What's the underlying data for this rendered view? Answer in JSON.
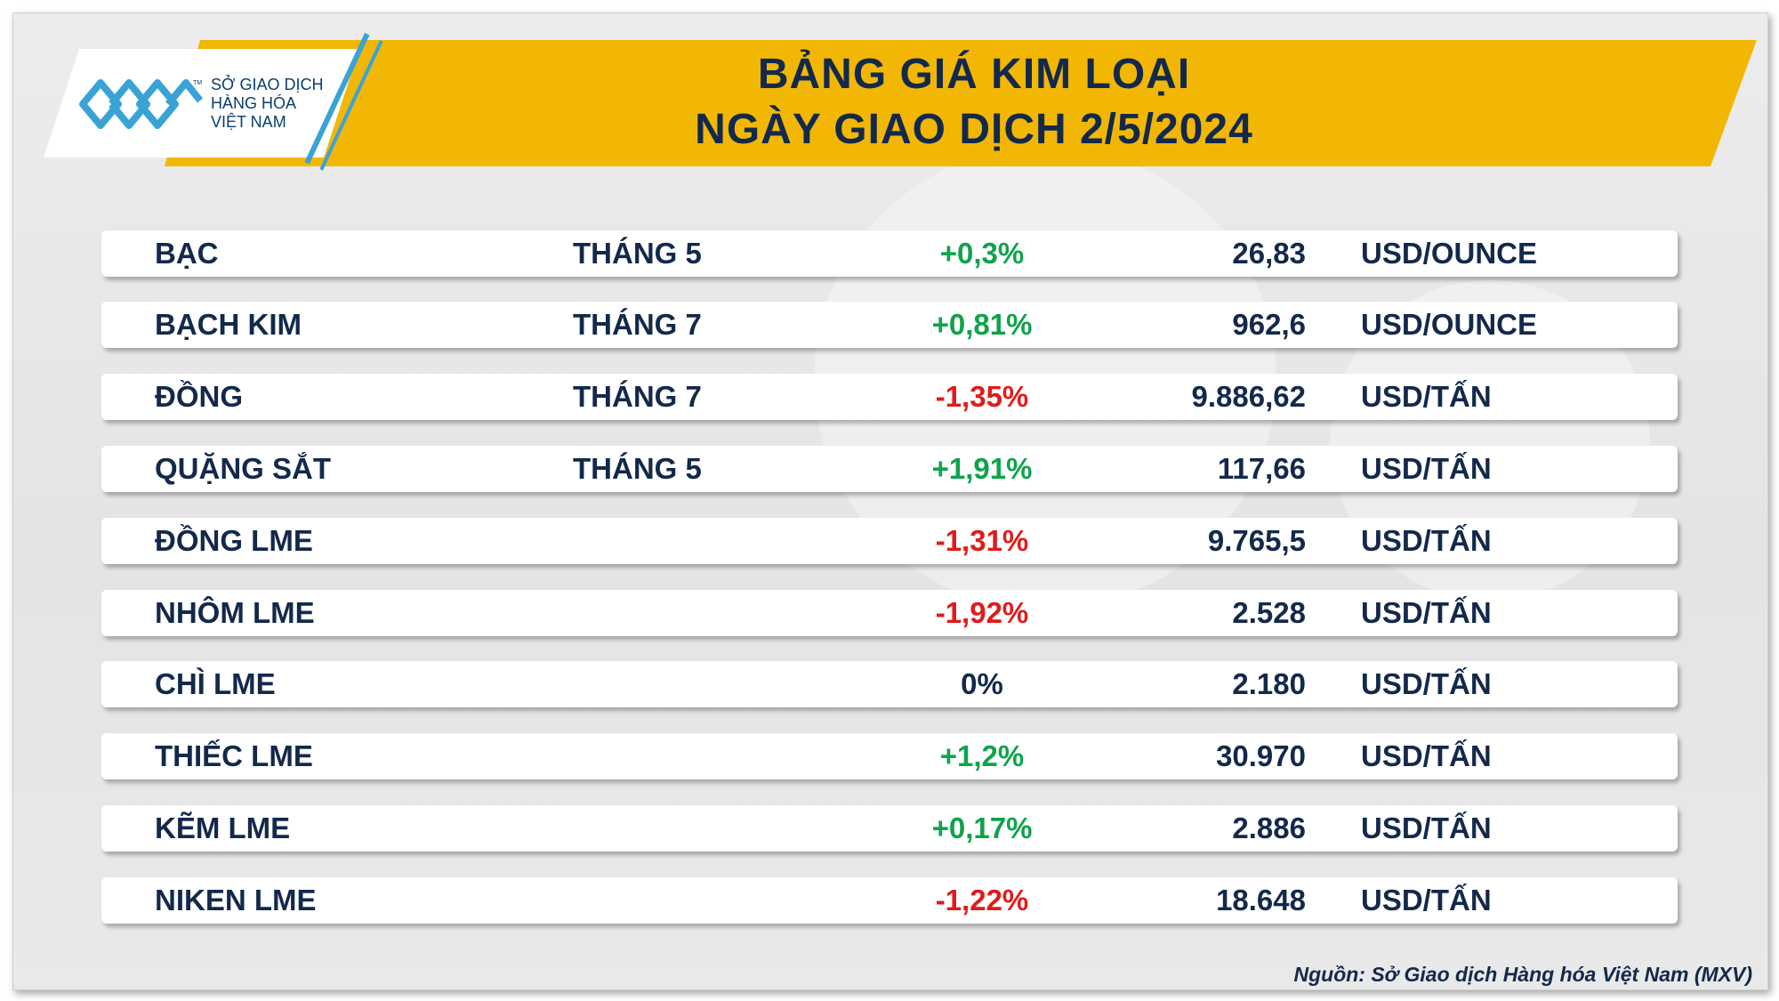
{
  "logo": {
    "line1": "SỞ GIAO DỊCH",
    "line2": "HÀNG HÓA",
    "line3": "VIỆT NAM",
    "tm": "TM"
  },
  "header": {
    "title_line1": "BẢNG GIÁ KIM LOẠI",
    "title_line2": "NGÀY GIAO DỊCH 2/5/2024"
  },
  "colors": {
    "banner": "#f2b705",
    "title": "#13294b",
    "positive": "#0fa34b",
    "negative": "#e01b1b",
    "logo_blue": "#3aa3d6"
  },
  "rows": [
    {
      "name": "BẠC",
      "month": "THÁNG 5",
      "change": "+0,3%",
      "trend": "up",
      "price": "26,83",
      "unit": "USD/OUNCE"
    },
    {
      "name": "BẠCH KIM",
      "month": "THÁNG 7",
      "change": "+0,81%",
      "trend": "up",
      "price": "962,6",
      "unit": "USD/OUNCE"
    },
    {
      "name": "ĐỒNG",
      "month": "THÁNG 7",
      "change": "-1,35%",
      "trend": "down",
      "price": "9.886,62",
      "unit": "USD/TẤN"
    },
    {
      "name": "QUẶNG SẮT",
      "month": "THÁNG 5",
      "change": "+1,91%",
      "trend": "up",
      "price": "117,66",
      "unit": "USD/TẤN"
    },
    {
      "name": "ĐỒNG LME",
      "month": "",
      "change": "-1,31%",
      "trend": "down",
      "price": "9.765,5",
      "unit": "USD/TẤN"
    },
    {
      "name": "NHÔM LME",
      "month": "",
      "change": "-1,92%",
      "trend": "down",
      "price": "2.528",
      "unit": "USD/TẤN"
    },
    {
      "name": "CHÌ LME",
      "month": "",
      "change": "0%",
      "trend": "flat",
      "price": "2.180",
      "unit": "USD/TẤN"
    },
    {
      "name": "THIẾC LME",
      "month": "",
      "change": "+1,2%",
      "trend": "up",
      "price": "30.970",
      "unit": "USD/TẤN"
    },
    {
      "name": "KẼM LME",
      "month": "",
      "change": "+0,17%",
      "trend": "up",
      "price": "2.886",
      "unit": "USD/TẤN"
    },
    {
      "name": "NIKEN LME",
      "month": "",
      "change": "-1,22%",
      "trend": "down",
      "price": "18.648",
      "unit": "USD/TẤN"
    }
  ],
  "source": "Nguồn: Sở Giao dịch Hàng hóa Việt Nam (MXV)"
}
